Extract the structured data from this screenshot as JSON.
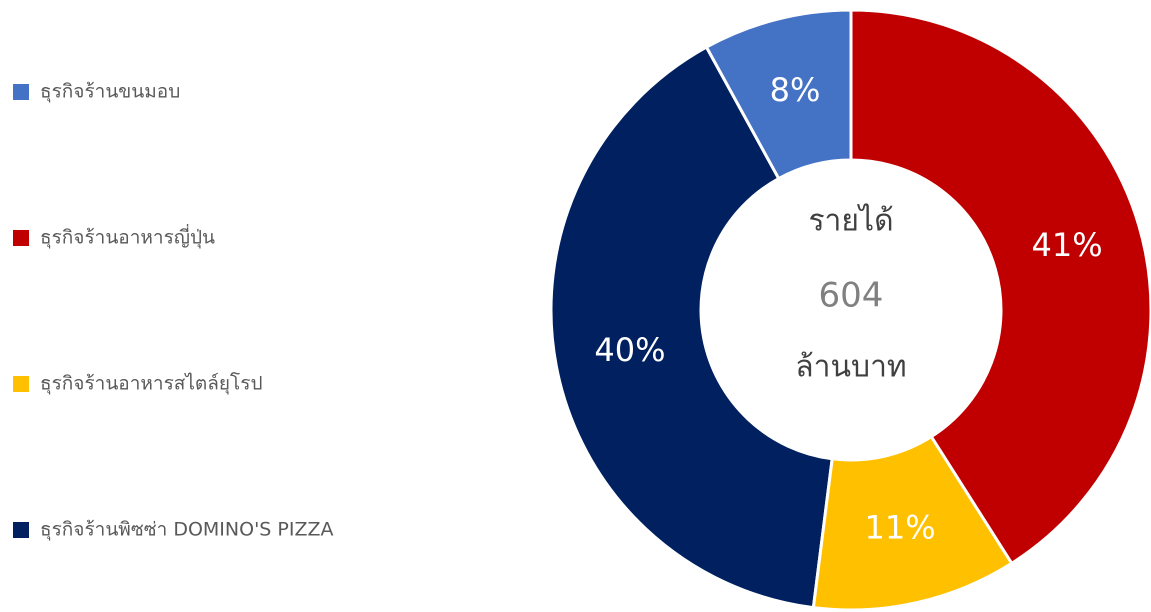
{
  "chart_data": {
    "type": "pie",
    "categories": [
      "ธุรกิจร้านขนมอบ",
      "ธุรกิจร้านอาหารญี่ปุ่น",
      "ธุรกิจร้านอาหารสไตล์ยุโรป",
      "ธุรกิจร้านพิซซ่า DOMINO'S PIZZA"
    ],
    "values": [
      8,
      41,
      11,
      40
    ],
    "value_labels": [
      "8%",
      "41%",
      "11%",
      "40%"
    ],
    "colors": [
      "#4472c4",
      "#c00000",
      "#ffc000",
      "#002060"
    ],
    "center_text": [
      "รายได้",
      "604",
      "ล้านบาท"
    ],
    "legend": "left"
  }
}
